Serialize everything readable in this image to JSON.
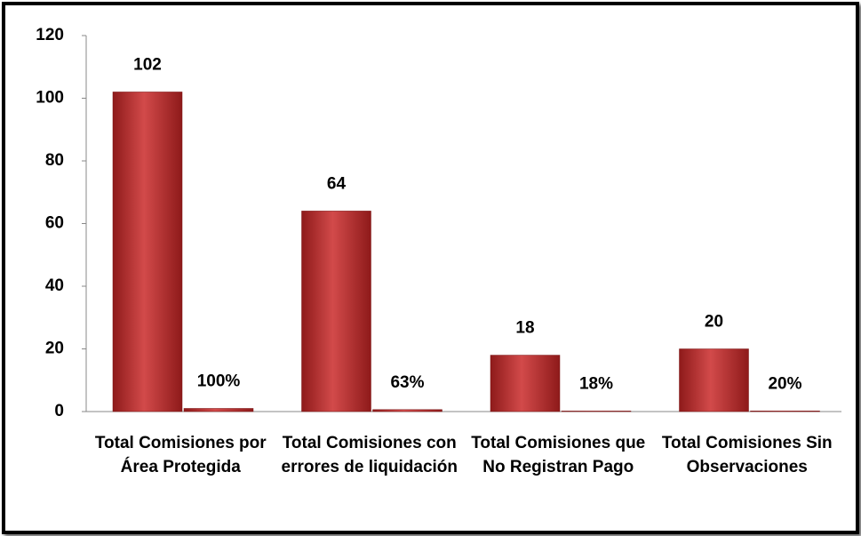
{
  "chart_data": {
    "type": "bar",
    "categories": [
      "Total Comisiones por Área Protegida",
      "Total Comisiones con errores de liquidación",
      "Total Comisiones que No Registran Pago",
      "Total Comisiones Sin Observaciones"
    ],
    "series": [
      {
        "color": "#c0392b",
        "values": [
          102,
          64,
          18,
          20
        ]
      },
      {
        "color": "#c0392b",
        "values": [
          1,
          0.63,
          0.18,
          0.2
        ],
        "value_labels": [
          "100%",
          "63%",
          "18%",
          "20%"
        ]
      }
    ],
    "ylim": [
      0,
      120
    ],
    "yticks": [
      0,
      20,
      40,
      60,
      80,
      100,
      120
    ],
    "grid": false
  }
}
